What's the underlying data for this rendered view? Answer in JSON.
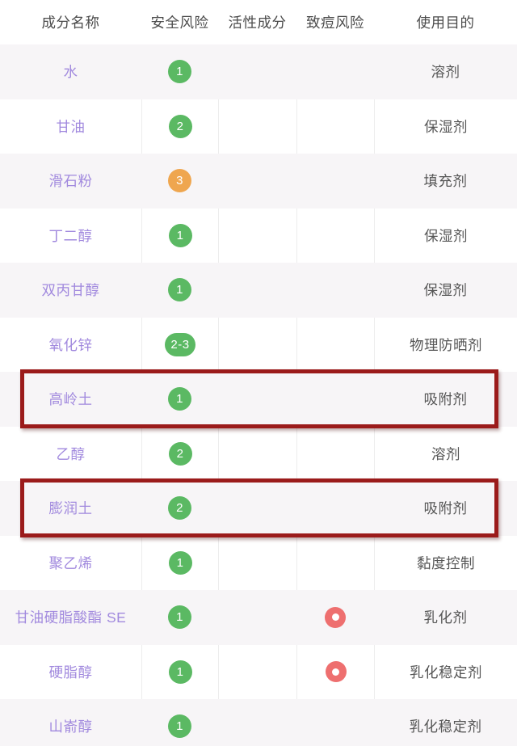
{
  "table": {
    "headers": [
      {
        "label": "成分名称"
      },
      {
        "label": "安全风险"
      },
      {
        "label": "活性成分"
      },
      {
        "label": "致痘风险"
      },
      {
        "label": "使用目的"
      }
    ],
    "rows": [
      {
        "name": "水",
        "safety_risk": "1",
        "safety_level": "low",
        "active_ingredient": "",
        "acne_risk": false,
        "purpose": "溶剂",
        "highlighted": false
      },
      {
        "name": "甘油",
        "safety_risk": "2",
        "safety_level": "low",
        "active_ingredient": "",
        "acne_risk": false,
        "purpose": "保湿剂",
        "highlighted": false
      },
      {
        "name": "滑石粉",
        "safety_risk": "3",
        "safety_level": "medium",
        "active_ingredient": "",
        "acne_risk": false,
        "purpose": "填充剂",
        "highlighted": false
      },
      {
        "name": "丁二醇",
        "safety_risk": "1",
        "safety_level": "low",
        "active_ingredient": "",
        "acne_risk": false,
        "purpose": "保湿剂",
        "highlighted": false
      },
      {
        "name": "双丙甘醇",
        "safety_risk": "1",
        "safety_level": "low",
        "active_ingredient": "",
        "acne_risk": false,
        "purpose": "保湿剂",
        "highlighted": false
      },
      {
        "name": "氧化锌",
        "safety_risk": "2-3",
        "safety_level": "low",
        "active_ingredient": "",
        "acne_risk": false,
        "purpose": "物理防晒剂",
        "highlighted": false
      },
      {
        "name": "高岭土",
        "safety_risk": "1",
        "safety_level": "low",
        "active_ingredient": "",
        "acne_risk": false,
        "purpose": "吸附剂",
        "highlighted": true
      },
      {
        "name": "乙醇",
        "safety_risk": "2",
        "safety_level": "low",
        "active_ingredient": "",
        "acne_risk": false,
        "purpose": "溶剂",
        "highlighted": false
      },
      {
        "name": "膨润土",
        "safety_risk": "2",
        "safety_level": "low",
        "active_ingredient": "",
        "acne_risk": false,
        "purpose": "吸附剂",
        "highlighted": true
      },
      {
        "name": "聚乙烯",
        "safety_risk": "1",
        "safety_level": "low",
        "active_ingredient": "",
        "acne_risk": false,
        "purpose": "黏度控制",
        "highlighted": false
      },
      {
        "name": "甘油硬脂酸酯 SE",
        "safety_risk": "1",
        "safety_level": "low",
        "active_ingredient": "",
        "acne_risk": true,
        "purpose": "乳化剂",
        "highlighted": false
      },
      {
        "name": "硬脂醇",
        "safety_risk": "1",
        "safety_level": "low",
        "active_ingredient": "",
        "acne_risk": true,
        "purpose": "乳化稳定剂",
        "highlighted": false
      },
      {
        "name": "山嵛醇",
        "safety_risk": "1",
        "safety_level": "low",
        "active_ingredient": "",
        "acne_risk": false,
        "purpose": "乳化稳定剂",
        "highlighted": false
      }
    ]
  },
  "colors": {
    "risk_low": "#5bb963",
    "risk_medium": "#efa64f",
    "acne_icon": "#ee6f6f",
    "ingredient_text": "#a189de",
    "highlight_border": "#9b1b1b",
    "row_alt_bg": "#f7f5f7"
  }
}
